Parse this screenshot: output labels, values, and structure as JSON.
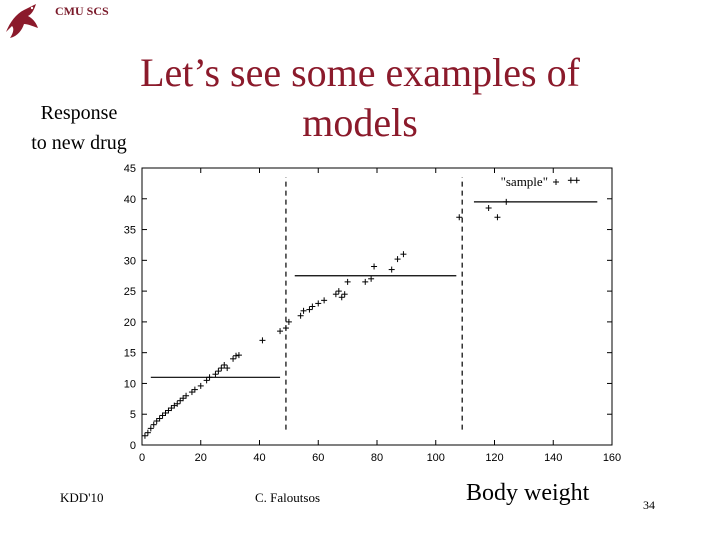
{
  "header": {
    "label": "CMU SCS",
    "logo_icon": "dragon-logo-icon"
  },
  "slide": {
    "title_line1": "Let’s see some examples of",
    "title_line2": "models",
    "y_label_line1": "Response",
    "y_label_line2": "to new drug",
    "x_label": "Body weight"
  },
  "footer": {
    "left": "KDD'10",
    "center": "C. Faloutsos",
    "page": "34"
  },
  "colors": {
    "title": "#8b1a2b",
    "logo": "#8b1a2b"
  },
  "chart_data": {
    "type": "scatter",
    "xlim": [
      0,
      160
    ],
    "ylim": [
      0,
      45
    ],
    "x_ticks": [
      0,
      20,
      40,
      60,
      80,
      100,
      120,
      140,
      160
    ],
    "y_ticks": [
      0,
      5,
      10,
      15,
      20,
      25,
      30,
      35,
      40,
      45
    ],
    "legend": {
      "label": "\"sample\"",
      "position": "top-right"
    },
    "series": [
      {
        "name": "\"sample\"",
        "marker": "+",
        "points": [
          [
            1,
            1.5
          ],
          [
            2,
            2
          ],
          [
            3,
            2.7
          ],
          [
            4,
            3.3
          ],
          [
            5,
            3.9
          ],
          [
            6,
            4.3
          ],
          [
            7,
            4.8
          ],
          [
            8,
            5.2
          ],
          [
            9,
            5.6
          ],
          [
            10,
            6
          ],
          [
            11,
            6.4
          ],
          [
            12,
            6.7
          ],
          [
            13,
            7.2
          ],
          [
            14,
            7.6
          ],
          [
            15,
            8
          ],
          [
            17,
            8.6
          ],
          [
            18,
            9
          ],
          [
            20,
            9.6
          ],
          [
            22,
            10.5
          ],
          [
            23,
            11
          ],
          [
            25,
            11.5
          ],
          [
            26,
            12
          ],
          [
            27,
            12.5
          ],
          [
            28,
            13
          ],
          [
            29,
            12.5
          ],
          [
            31,
            14
          ],
          [
            32,
            14.5
          ],
          [
            33,
            14.6
          ],
          [
            41,
            17
          ],
          [
            47,
            18.5
          ],
          [
            49,
            19
          ],
          [
            50,
            20
          ],
          [
            54,
            21
          ],
          [
            55,
            21.8
          ],
          [
            57,
            22
          ],
          [
            58,
            22.5
          ],
          [
            60,
            23
          ],
          [
            62,
            23.5
          ],
          [
            66,
            24.5
          ],
          [
            67,
            25
          ],
          [
            68,
            24
          ],
          [
            69,
            24.5
          ],
          [
            70,
            26.5
          ],
          [
            76,
            26.5
          ],
          [
            78,
            27
          ],
          [
            79,
            29
          ],
          [
            85,
            28.5
          ],
          [
            87,
            30.2
          ],
          [
            89,
            31
          ],
          [
            108,
            37
          ],
          [
            118,
            38.5
          ],
          [
            121,
            37
          ],
          [
            124,
            39.5
          ],
          [
            146,
            43
          ],
          [
            148,
            43
          ]
        ]
      }
    ],
    "segments": [
      {
        "style": "solid",
        "from": [
          3,
          11
        ],
        "to": [
          47,
          11
        ]
      },
      {
        "style": "solid",
        "from": [
          52,
          27.5
        ],
        "to": [
          107,
          27.5
        ]
      },
      {
        "style": "solid",
        "from": [
          113,
          39.5
        ],
        "to": [
          155,
          39.5
        ]
      }
    ],
    "dividers": [
      {
        "style": "dashed",
        "x": 49,
        "from_y": 2.5,
        "to_y": 43.5
      },
      {
        "style": "dashed",
        "x": 109,
        "from_y": 2.5,
        "to_y": 43.5
      }
    ]
  }
}
